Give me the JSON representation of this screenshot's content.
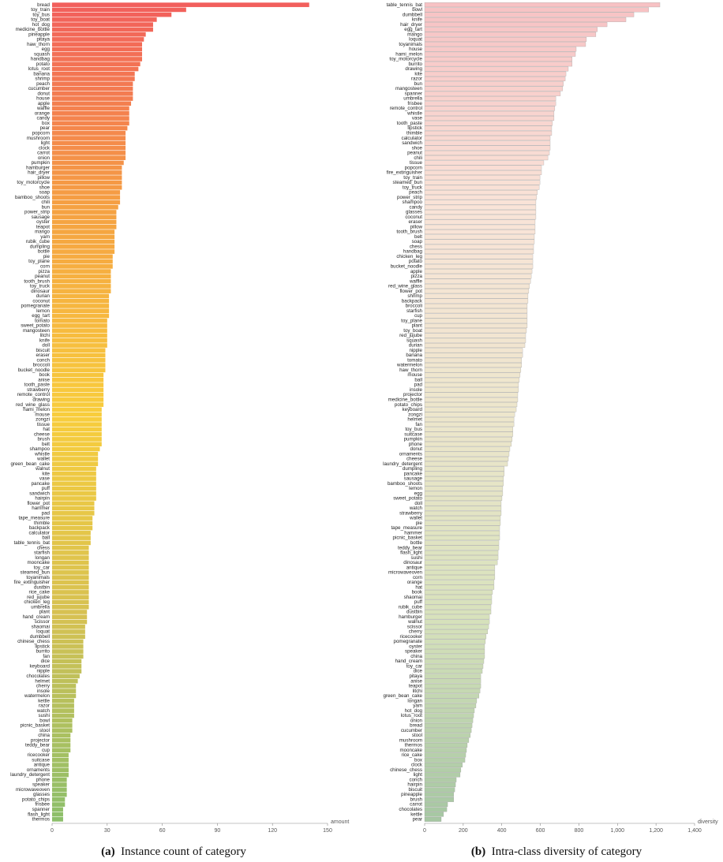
{
  "chart_data": [
    {
      "type": "bar",
      "orientation": "horizontal",
      "caption": {
        "label": "(a)",
        "text": "Instance count of category"
      },
      "xlabel": "amount",
      "xlim": [
        0,
        150
      ],
      "xticks": [
        0,
        30,
        60,
        90,
        120,
        150
      ],
      "color_stops": [
        "#f25f5c",
        "#f5a142",
        "#f8cd3c",
        "#d6c152",
        "#8cbf6a"
      ],
      "categories": [
        "bread",
        "toy_train",
        "toy_bus",
        "toy_boat",
        "hot_dog",
        "medicine_bottle",
        "pineapple",
        "pitaya",
        "haw_thorn",
        "egg",
        "squash",
        "handbag",
        "potato",
        "lotus_root",
        "banana",
        "shrimp",
        "peach",
        "cucumber",
        "donut",
        "house",
        "apple",
        "waffle",
        "orange",
        "candy",
        "box",
        "pear",
        "popcorn",
        "mushroom",
        "light",
        "clock",
        "carrot",
        "onion",
        "pumpkin",
        "hamburger",
        "hair_dryer",
        "pillow",
        "toy_motorcycle",
        "shoe",
        "soap",
        "bamboo_shoots",
        "chili",
        "bun",
        "power_strip",
        "sausage",
        "oyster",
        "teapot",
        "mango",
        "yam",
        "rubik_cube",
        "dumpling",
        "bottle",
        "pie",
        "toy_plane",
        "corn",
        "pizza",
        "peanut",
        "tooth_brush",
        "toy_truck",
        "dinosaur",
        "durian",
        "coconut",
        "pomegranate",
        "lemon",
        "egg_tart",
        "tomato",
        "sweet_potato",
        "mangosteen",
        "litchi",
        "knife",
        "doll",
        "biscuit",
        "eraser",
        "conch",
        "broccoli",
        "bucket_noodle",
        "book",
        "anise",
        "tooth_paste",
        "strawberry",
        "remote_control",
        "drawing",
        "red_wine_glass",
        "hami_melon",
        "mouse",
        "zongzi",
        "tissue",
        "hat",
        "cheese",
        "brush",
        "belt",
        "shampoo",
        "whistle",
        "wallet",
        "green_bean_cake",
        "walnut",
        "kite",
        "vase",
        "pancake",
        "puff",
        "sandwich",
        "hairpin",
        "flower_pot",
        "hammer",
        "pad",
        "tape_measure",
        "thimble",
        "backpack",
        "calculator",
        "ball",
        "table_tennis_bat",
        "chess",
        "starfish",
        "longan",
        "mooncake",
        "toy_car",
        "steamed_bun",
        "toyanimals",
        "fire_extinguisher",
        "dustbin",
        "rice_cake",
        "red_jujube",
        "chicken_leg",
        "umbrella",
        "plant",
        "hand_cream",
        "scissor",
        "shaomai",
        "loquat",
        "dumbbell",
        "chinese_chess",
        "lipstick",
        "burrito",
        "fan",
        "dice",
        "keyboard",
        "nipple",
        "chocolates",
        "helmet",
        "cherry",
        "insole",
        "watermelon",
        "kettle",
        "razor",
        "watch",
        "sushi",
        "bowl",
        "picnic_basket",
        "stool",
        "china",
        "projector",
        "teddy_bear",
        "cup",
        "ricecooker",
        "suitcase",
        "antique",
        "ornaments",
        "laundry_detergent",
        "phone",
        "speaker",
        "microwaveoven",
        "glasses",
        "potato_chips",
        "frisbee",
        "spanner",
        "flash_light",
        "thermos"
      ],
      "values": [
        140,
        73,
        65,
        57,
        55,
        55,
        51,
        50,
        49,
        49,
        49,
        49,
        48,
        47,
        45,
        45,
        44,
        44,
        44,
        44,
        43,
        42,
        42,
        42,
        42,
        41,
        40,
        40,
        40,
        40,
        40,
        40,
        39,
        38,
        38,
        38,
        38,
        38,
        37,
        37,
        37,
        36,
        35,
        35,
        35,
        35,
        34,
        34,
        34,
        34,
        34,
        33,
        33,
        33,
        32,
        32,
        32,
        32,
        32,
        31,
        31,
        31,
        31,
        31,
        30,
        30,
        30,
        30,
        30,
        30,
        29,
        29,
        29,
        29,
        29,
        28,
        28,
        28,
        28,
        28,
        28,
        28,
        27,
        27,
        27,
        27,
        27,
        27,
        27,
        27,
        26,
        25,
        25,
        25,
        24,
        24,
        24,
        24,
        24,
        24,
        24,
        23,
        23,
        23,
        22,
        22,
        22,
        21,
        21,
        21,
        20,
        20,
        20,
        20,
        20,
        20,
        20,
        20,
        20,
        20,
        20,
        20,
        20,
        19,
        19,
        19,
        18,
        18,
        18,
        17,
        17,
        17,
        17,
        16,
        16,
        16,
        15,
        14,
        13,
        13,
        13,
        12,
        12,
        12,
        12,
        11,
        11,
        11,
        10,
        10,
        10,
        10,
        9,
        9,
        9,
        9,
        9,
        8,
        8,
        8,
        8,
        7,
        7,
        6,
        6,
        6
      ]
    },
    {
      "type": "bar",
      "orientation": "horizontal",
      "caption": {
        "label": "(b)",
        "text": "Intra-class diversity of category"
      },
      "xlabel": "diversity",
      "xlim": [
        0,
        1400
      ],
      "xticks": [
        0,
        200,
        400,
        600,
        800,
        {
          "value": 1000,
          "label": "1,000"
        },
        {
          "value": 1200,
          "label": "1,200"
        },
        {
          "value": 1400,
          "label": "1,400"
        }
      ],
      "color_stops": [
        "#f7c2c4",
        "#f9e4d8",
        "#ede6cc",
        "#d8e2bc",
        "#a6c7a2"
      ],
      "categories": [
        "table_tennis_bat",
        "bowl",
        "dumbbell",
        "knife",
        "hair_dryer",
        "egg_tart",
        "mango",
        "loquat",
        "toyanimals",
        "house",
        "hami_melon",
        "toy_motorcycle",
        "burrito",
        "drawing",
        "kite",
        "razor",
        "bun",
        "mangosteen",
        "spanner",
        "umbrella",
        "frisbee",
        "remote_control",
        "whistle",
        "vase",
        "tooth_paste",
        "lipstick",
        "thimble",
        "calculator",
        "sandwich",
        "shoe",
        "peanut",
        "chili",
        "tissue",
        "popcorn",
        "fire_extinguisher",
        "toy_train",
        "steamed_bun",
        "toy_truck",
        "peach",
        "power_strip",
        "shampoo",
        "candy",
        "glasses",
        "coconut",
        "eraser",
        "pillow",
        "tooth_brush",
        "belt",
        "soap",
        "chess",
        "handbag",
        "chicken_leg",
        "potato",
        "bucket_noodle",
        "apple",
        "pizza",
        "waffle",
        "red_wine_glass",
        "flower_pot",
        "shrimp",
        "backpack",
        "broccoli",
        "starfish",
        "cup",
        "toy_plane",
        "plant",
        "toy_boat",
        "red_jujube",
        "squash",
        "durian",
        "nipple",
        "banana",
        "tomato",
        "watermelon",
        "haw_thorn",
        "mouse",
        "ball",
        "pad",
        "insole",
        "projector",
        "medicine_bottle",
        "potato_chips",
        "keyboard",
        "zongzi",
        "helmet",
        "fan",
        "toy_bus",
        "suitcase",
        "pumpkin",
        "phone",
        "donut",
        "ornaments",
        "cheese",
        "laundry_detergent",
        "dumpling",
        "pancake",
        "sausage",
        "bamboo_shoots",
        "lemon",
        "egg",
        "sweet_potato",
        "doll",
        "watch",
        "strawberry",
        "wallet",
        "pie",
        "tape_measure",
        "hammer",
        "picnic_basket",
        "bottle",
        "teddy_bear",
        "flash_light",
        "sushi",
        "dinosaur",
        "antique",
        "microwaveoven",
        "corn",
        "orange",
        "hat",
        "book",
        "shaomai",
        "puff",
        "rubik_cube",
        "dustbin",
        "hamburger",
        "walnut",
        "scissor",
        "cherry",
        "ricecooker",
        "pomegranate",
        "oyster",
        "speaker",
        "china",
        "hand_cream",
        "toy_car",
        "dice",
        "pitaya",
        "anise",
        "teapot",
        "litchi",
        "green_bean_cake",
        "longan",
        "yam",
        "hot_dog",
        "lotus_root",
        "onion",
        "bread",
        "cucumber",
        "stool",
        "mushroom",
        "thermos",
        "mooncake",
        "rice_cake",
        "box",
        "clock",
        "chinese_chess",
        "light",
        "conch",
        "hairpin",
        "biscuit",
        "pineapple",
        "brush",
        "carrot",
        "chocolates",
        "kettle",
        "pear"
      ],
      "values": [
        1220,
        1162,
        1085,
        1044,
        946,
        896,
        888,
        839,
        835,
        786,
        782,
        765,
        765,
        745,
        733,
        729,
        720,
        716,
        704,
        680,
        680,
        675,
        671,
        671,
        663,
        659,
        659,
        651,
        651,
        651,
        647,
        639,
        618,
        606,
        606,
        598,
        598,
        594,
        585,
        581,
        577,
        577,
        577,
        577,
        573,
        573,
        573,
        569,
        569,
        565,
        565,
        561,
        561,
        561,
        557,
        553,
        549,
        544,
        540,
        536,
        536,
        532,
        532,
        532,
        532,
        532,
        528,
        524,
        524,
        520,
        508,
        508,
        503,
        503,
        499,
        495,
        491,
        487,
        487,
        483,
        483,
        479,
        475,
        467,
        463,
        463,
        458,
        458,
        454,
        450,
        442,
        438,
        434,
        430,
        413,
        413,
        409,
        409,
        405,
        405,
        401,
        397,
        397,
        397,
        393,
        393,
        389,
        389,
        389,
        385,
        385,
        381,
        381,
        377,
        364,
        364,
        364,
        360,
        360,
        352,
        348,
        348,
        344,
        344,
        336,
        336,
        332,
        327,
        319,
        315,
        311,
        311,
        311,
        307,
        303,
        299,
        291,
        291,
        291,
        287,
        282,
        270,
        266,
        258,
        254,
        250,
        246,
        242,
        237,
        229,
        221,
        217,
        213,
        209,
        196,
        188,
        184,
        164,
        160,
        156,
        151,
        151,
        119,
        115,
        98,
        86
      ]
    }
  ]
}
